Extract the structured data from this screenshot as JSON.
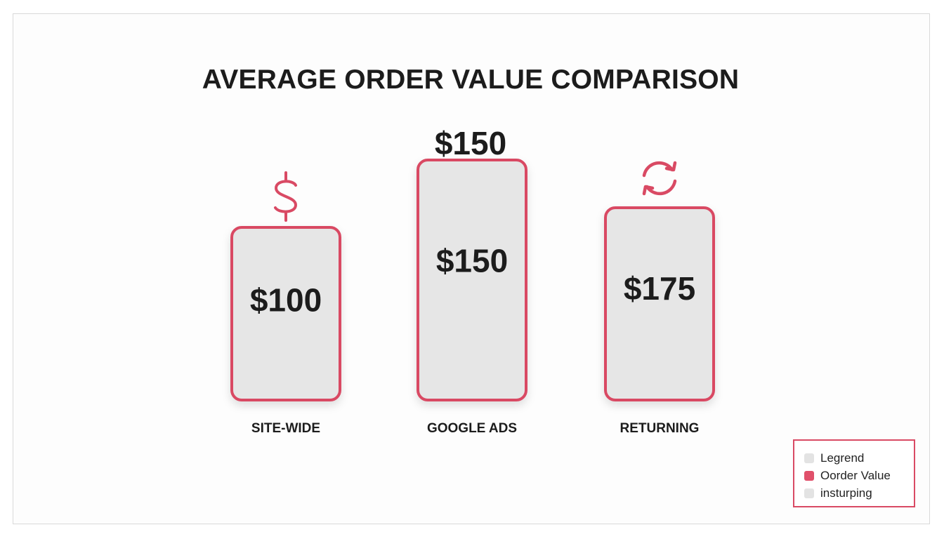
{
  "chart_data": {
    "type": "bar",
    "title": "AVERAGE ORDER VALUE COMPARISON",
    "categories": [
      "SITE-WIDE",
      "GOOGLE ADS",
      "RETURNING"
    ],
    "values": [
      100,
      150,
      175
    ],
    "value_labels": [
      "$100",
      "$150",
      "$175"
    ],
    "top_labels": [
      "",
      "$150",
      ""
    ],
    "top_icons": [
      "dollar-icon",
      "",
      "refresh-icon"
    ],
    "series_name": "Order Value",
    "colors": {
      "bar_fill": "#e6e6e6",
      "bar_border": "#d94a64",
      "icon": "#d94a64",
      "text": "#1c1c1c"
    },
    "legend": {
      "position": "bottom-right",
      "items": [
        {
          "label": "Legrend",
          "color": "#e3e3e3"
        },
        {
          "label": "Oorder Value",
          "color": "#e0506a"
        },
        {
          "label": "insturping",
          "color": "#e3e3e3"
        }
      ]
    }
  }
}
